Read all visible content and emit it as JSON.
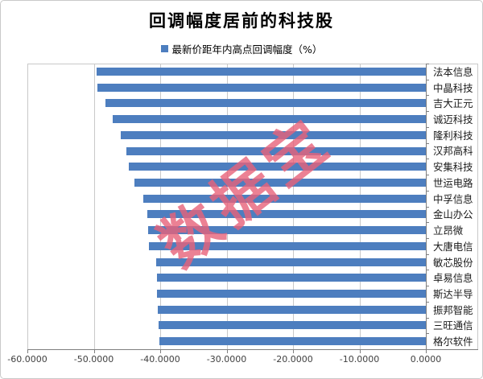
{
  "title": "回调幅度居前的科技股",
  "legend": {
    "label": "最新价距年内高点回调幅度（%）",
    "swatch_color": "#4d7ebf"
  },
  "watermark": {
    "text": "数据宝",
    "color": "#e8627a"
  },
  "chart_data": {
    "type": "bar",
    "orientation": "horizontal",
    "title": "回调幅度居前的科技股",
    "series_name": "最新价距年内高点回调幅度（%）",
    "legend_position": "top",
    "categories": [
      "法本信息",
      "中晶科技",
      "吉大正元",
      "诚迈科技",
      "隆利科技",
      "汉邦高科",
      "安集科技",
      "世运电路",
      "中孚信息",
      "金山办公",
      "立昂微",
      "大唐电信",
      "敏芯股份",
      "卓易信息",
      "斯达半导",
      "振邦智能",
      "三旺通信",
      "格尔软件"
    ],
    "values": [
      -49.6,
      -49.4,
      -48.3,
      -47.1,
      -46.0,
      -45.1,
      -44.7,
      -43.9,
      -42.6,
      -41.9,
      -41.8,
      -41.7,
      -40.6,
      -40.5,
      -40.5,
      -40.4,
      -40.2,
      -40.1
    ],
    "xlim": [
      -60,
      0
    ],
    "x_tick_values": [
      -60,
      -50,
      -40,
      -30,
      -20,
      -10,
      0
    ],
    "x_tick_labels": [
      "-60.0000",
      "-50.0000",
      "-40.0000",
      "-30.0000",
      "-20.0000",
      "-10.0000",
      "0.0000"
    ],
    "grid": "vertical-only",
    "bar_color": "#4d7ebf",
    "gridline_color": "#c9c9c9",
    "axis_color": "#7f7f7f"
  }
}
